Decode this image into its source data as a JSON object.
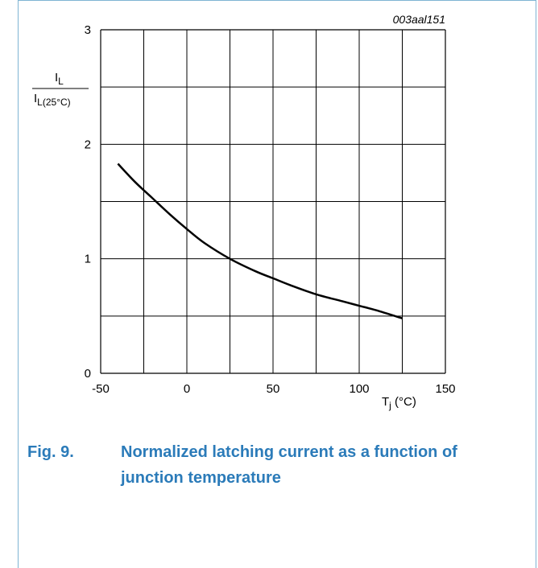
{
  "chart_data": {
    "type": "line",
    "id_label": "003aal151",
    "ylabel_num": "I",
    "ylabel_num_sub": "L",
    "ylabel_den": "I",
    "ylabel_den_sub": "L(25°C)",
    "xlabel": "T",
    "xlabel_sub": "j",
    "xlabel_unit": " (°C)",
    "xlim": [
      -50,
      150
    ],
    "ylim": [
      0,
      3
    ],
    "x_ticks": [
      -50,
      0,
      50,
      100,
      150
    ],
    "y_ticks": [
      0,
      1,
      2,
      3
    ],
    "grid": true,
    "series": [
      {
        "x": [
          -40,
          -30,
          -20,
          -10,
          0,
          10,
          25,
          40,
          50,
          60,
          75,
          90,
          100,
          110,
          125
        ],
        "y": [
          1.83,
          1.67,
          1.53,
          1.39,
          1.26,
          1.14,
          1.0,
          0.89,
          0.83,
          0.77,
          0.69,
          0.63,
          0.59,
          0.55,
          0.48
        ]
      }
    ]
  },
  "caption": {
    "number": "Fig. 9.",
    "text": "Normalized latching current as a function of junction temperature"
  }
}
